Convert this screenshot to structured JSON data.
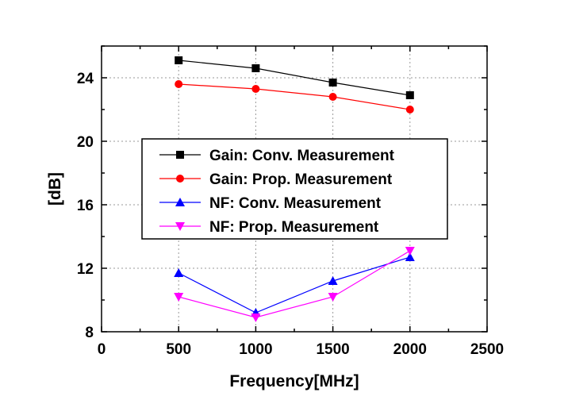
{
  "chart_data": {
    "type": "line",
    "xlabel": "Frequency[MHz]",
    "ylabel": "[dB]",
    "xlim": [
      0,
      2500
    ],
    "ylim": [
      8,
      26
    ],
    "xticks": [
      0,
      500,
      1000,
      1500,
      2000,
      2500
    ],
    "yticks": [
      8,
      12,
      16,
      20,
      24
    ],
    "grid": true,
    "legend_position": "center-left",
    "x": [
      500,
      1000,
      1500,
      2000
    ],
    "series": [
      {
        "name": "Gain: Conv. Measurement",
        "values": [
          25.1,
          24.6,
          23.7,
          22.9
        ],
        "color": "#000000",
        "marker": "square"
      },
      {
        "name": "Gain: Prop. Measurement",
        "values": [
          23.6,
          23.3,
          22.8,
          22.0
        ],
        "color": "#ff0000",
        "marker": "circle"
      },
      {
        "name": "NF: Conv. Measurement",
        "values": [
          11.7,
          9.2,
          11.2,
          12.7
        ],
        "color": "#0000ff",
        "marker": "triangle-up"
      },
      {
        "name": "NF: Prop. Measurement",
        "values": [
          10.2,
          8.9,
          10.2,
          13.1
        ],
        "color": "#ff00ff",
        "marker": "triangle-down"
      }
    ]
  }
}
